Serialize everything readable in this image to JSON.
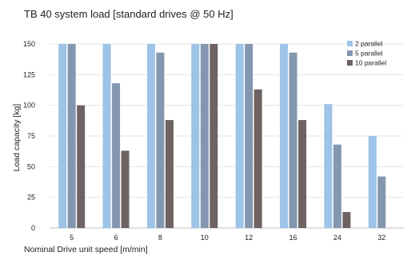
{
  "chart_data": {
    "type": "bar",
    "title": "TB 40 system load [standard drives @ 50 Hz]",
    "xlabel": "Nominal Drive unit speed [m/min]",
    "ylabel": "Load capacity [kg]",
    "categories": [
      "5",
      "6",
      "8",
      "10",
      "12",
      "16",
      "24",
      "32"
    ],
    "y_ticks": [
      "0",
      "25",
      "50",
      "75",
      "100",
      "125",
      "150"
    ],
    "ylim": [
      0,
      150
    ],
    "grid": true,
    "legend_position": "top-right",
    "series": [
      {
        "name": "2 parallel",
        "color": "#9dc3e6",
        "values": [
          150,
          150,
          150,
          150,
          150,
          150,
          101,
          75
        ]
      },
      {
        "name": "5 parallel",
        "color": "#8497b0",
        "values": [
          150,
          118,
          143,
          150,
          150,
          143,
          68,
          42
        ]
      },
      {
        "name": "10 parallel",
        "color": "#6e6262",
        "values": [
          100,
          63,
          88,
          150,
          113,
          88,
          13,
          null
        ]
      }
    ]
  }
}
